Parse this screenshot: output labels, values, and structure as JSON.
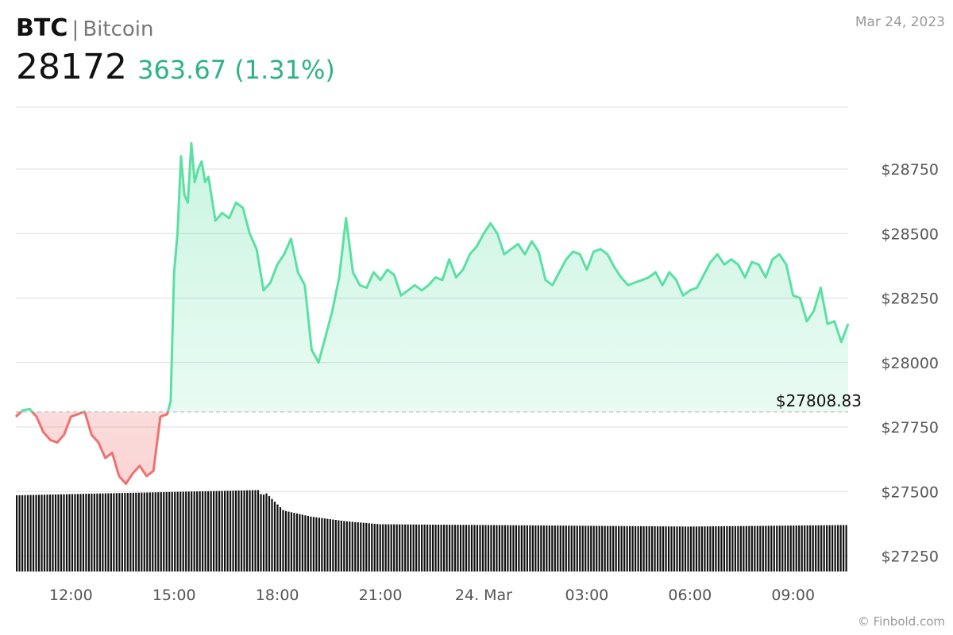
{
  "header": {
    "ticker": "BTC",
    "separator": "|",
    "name": "Bitcoin",
    "price": "28172",
    "change": "363.67 (1.31%)",
    "date": "Mar 24, 2023"
  },
  "source": "© Finbold.com",
  "colors": {
    "up": "#5be0a3",
    "down": "#f07070",
    "change_text": "#2eb383"
  },
  "chart_data": {
    "type": "line",
    "title": "",
    "reference_price": 27808.83,
    "reference_label": "$27808.83",
    "ylim": [
      27190,
      28990
    ],
    "y_ticks": [
      27250,
      27500,
      27750,
      28000,
      28250,
      28500,
      28750
    ],
    "y_tick_labels": [
      "$27250",
      "$27500",
      "$27750",
      "$28000",
      "$28250",
      "$28500",
      "$28750"
    ],
    "x_ticks": [
      12,
      15,
      18,
      21,
      24,
      27,
      30,
      33
    ],
    "x_tick_labels": [
      "12:00",
      "15:00",
      "18:00",
      "21:00",
      "24. Mar",
      "03:00",
      "06:00",
      "09:00"
    ],
    "xlim": [
      10.4,
      34.6
    ],
    "grid": true,
    "series": [
      {
        "x": [
          10.4,
          10.6,
          10.8,
          11.0,
          11.2,
          11.4,
          11.6,
          11.8,
          12.0,
          12.2,
          12.4,
          12.6,
          12.8,
          13.0,
          13.2,
          13.4,
          13.6,
          13.8,
          14.0,
          14.2,
          14.4,
          14.6,
          14.8,
          14.9,
          15.0,
          15.1,
          15.2,
          15.3,
          15.4,
          15.5,
          15.6,
          15.7,
          15.8,
          15.9,
          16.0,
          16.2,
          16.4,
          16.6,
          16.8,
          17.0,
          17.2,
          17.4,
          17.6,
          17.8,
          18.0,
          18.2,
          18.4,
          18.6,
          18.8,
          19.0,
          19.2,
          19.4,
          19.6,
          19.8,
          20.0,
          20.2,
          20.4,
          20.6,
          20.8,
          21.0,
          21.2,
          21.4,
          21.6,
          21.8,
          22.0,
          22.2,
          22.4,
          22.6,
          22.8,
          23.0,
          23.2,
          23.4,
          23.6,
          23.8,
          24.0,
          24.2,
          24.4,
          24.6,
          24.8,
          25.0,
          25.2,
          25.4,
          25.6,
          25.8,
          26.0,
          26.2,
          26.4,
          26.6,
          26.8,
          27.0,
          27.2,
          27.4,
          27.6,
          27.8,
          28.0,
          28.2,
          28.4,
          28.6,
          28.8,
          29.0,
          29.2,
          29.4,
          29.6,
          29.8,
          30.0,
          30.2,
          30.4,
          30.6,
          30.8,
          31.0,
          31.2,
          31.4,
          31.6,
          31.8,
          32.0,
          32.2,
          32.4,
          32.6,
          32.8,
          33.0,
          33.2,
          33.4,
          33.6,
          33.8,
          34.0,
          34.2,
          34.4,
          34.6
        ],
        "y": [
          27790,
          27815,
          27820,
          27790,
          27730,
          27700,
          27690,
          27720,
          27790,
          27800,
          27810,
          27720,
          27690,
          27630,
          27650,
          27560,
          27530,
          27570,
          27600,
          27560,
          27580,
          27790,
          27800,
          27850,
          28350,
          28500,
          28800,
          28650,
          28620,
          28850,
          28700,
          28750,
          28780,
          28700,
          28720,
          28550,
          28580,
          28560,
          28620,
          28600,
          28500,
          28440,
          28280,
          28310,
          28380,
          28420,
          28480,
          28350,
          28300,
          28050,
          28000,
          28100,
          28200,
          28330,
          28560,
          28350,
          28300,
          28290,
          28350,
          28320,
          28360,
          28340,
          28260,
          28280,
          28300,
          28280,
          28300,
          28330,
          28320,
          28400,
          28330,
          28360,
          28420,
          28450,
          28500,
          28540,
          28500,
          28420,
          28440,
          28460,
          28420,
          28470,
          28430,
          28320,
          28300,
          28350,
          28400,
          28430,
          28420,
          28360,
          28430,
          28440,
          28420,
          28370,
          28330,
          28300,
          28310,
          28320,
          28330,
          28350,
          28300,
          28350,
          28320,
          28260,
          28280,
          28290,
          28340,
          28390,
          28420,
          28380,
          28400,
          28380,
          28330,
          28390,
          28380,
          28330,
          28400,
          28420,
          28380,
          28260,
          28250,
          28160,
          28200,
          28290,
          28150,
          28160,
          28080,
          28150
        ]
      }
    ],
    "volume": {
      "note": "relative bar heights",
      "x": [
        10.4,
        15.6,
        17.6,
        18.2,
        19.0,
        20.0,
        21.0,
        24.0,
        30.0,
        34.6
      ],
      "values": [
        1.0,
        1.05,
        1.07,
        0.8,
        0.72,
        0.66,
        0.62,
        0.61,
        0.59,
        0.61
      ]
    }
  }
}
